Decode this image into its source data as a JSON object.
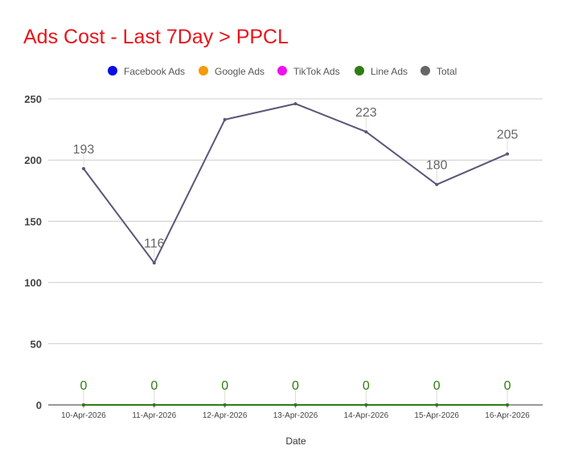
{
  "chart_data": {
    "type": "line",
    "title": "Ads Cost - Last 7Day > PPCL",
    "xlabel": "Date",
    "ylabel": "",
    "ylim": [
      0,
      250
    ],
    "yticks": [
      0,
      50,
      100,
      150,
      200,
      250
    ],
    "categories": [
      "10-Apr-2026",
      "11-Apr-2026",
      "12-Apr-2026",
      "13-Apr-2026",
      "14-Apr-2026",
      "15-Apr-2026",
      "16-Apr-2026"
    ],
    "legend": [
      {
        "name": "Facebook Ads",
        "color": "#0b0be6"
      },
      {
        "name": "Google Ads",
        "color": "#f59a0a"
      },
      {
        "name": "TikTok Ads",
        "color": "#f00ff0"
      },
      {
        "name": "Line Ads",
        "color": "#2e7d12"
      },
      {
        "name": "Total",
        "color": "#666666"
      }
    ],
    "series": [
      {
        "name": "Facebook Ads",
        "color": "#0b0be6",
        "values": [
          0,
          0,
          0,
          0,
          0,
          0,
          0
        ]
      },
      {
        "name": "Google Ads",
        "color": "#f59a0a",
        "values": [
          0,
          0,
          0,
          0,
          0,
          0,
          0
        ]
      },
      {
        "name": "TikTok Ads",
        "color": "#f00ff0",
        "values": [
          0,
          0,
          0,
          0,
          0,
          0,
          0
        ]
      },
      {
        "name": "Line Ads",
        "color": "#2e7d12",
        "values": [
          0,
          0,
          0,
          0,
          0,
          0,
          0
        ],
        "labels": [
          "0",
          "0",
          "0",
          "0",
          "0",
          "0",
          "0"
        ]
      },
      {
        "name": "Total",
        "color": "#5b5577",
        "values": [
          193,
          116,
          233,
          246,
          223,
          180,
          205
        ],
        "labels": [
          "193",
          "116",
          "",
          "",
          "223",
          "180",
          "205"
        ]
      }
    ],
    "colors": {
      "title": "#e8131b",
      "grid": "#cccccc",
      "axis": "#333333",
      "tick": "#444444",
      "label_gray": "#666666",
      "label_green": "#2e7d12"
    }
  }
}
